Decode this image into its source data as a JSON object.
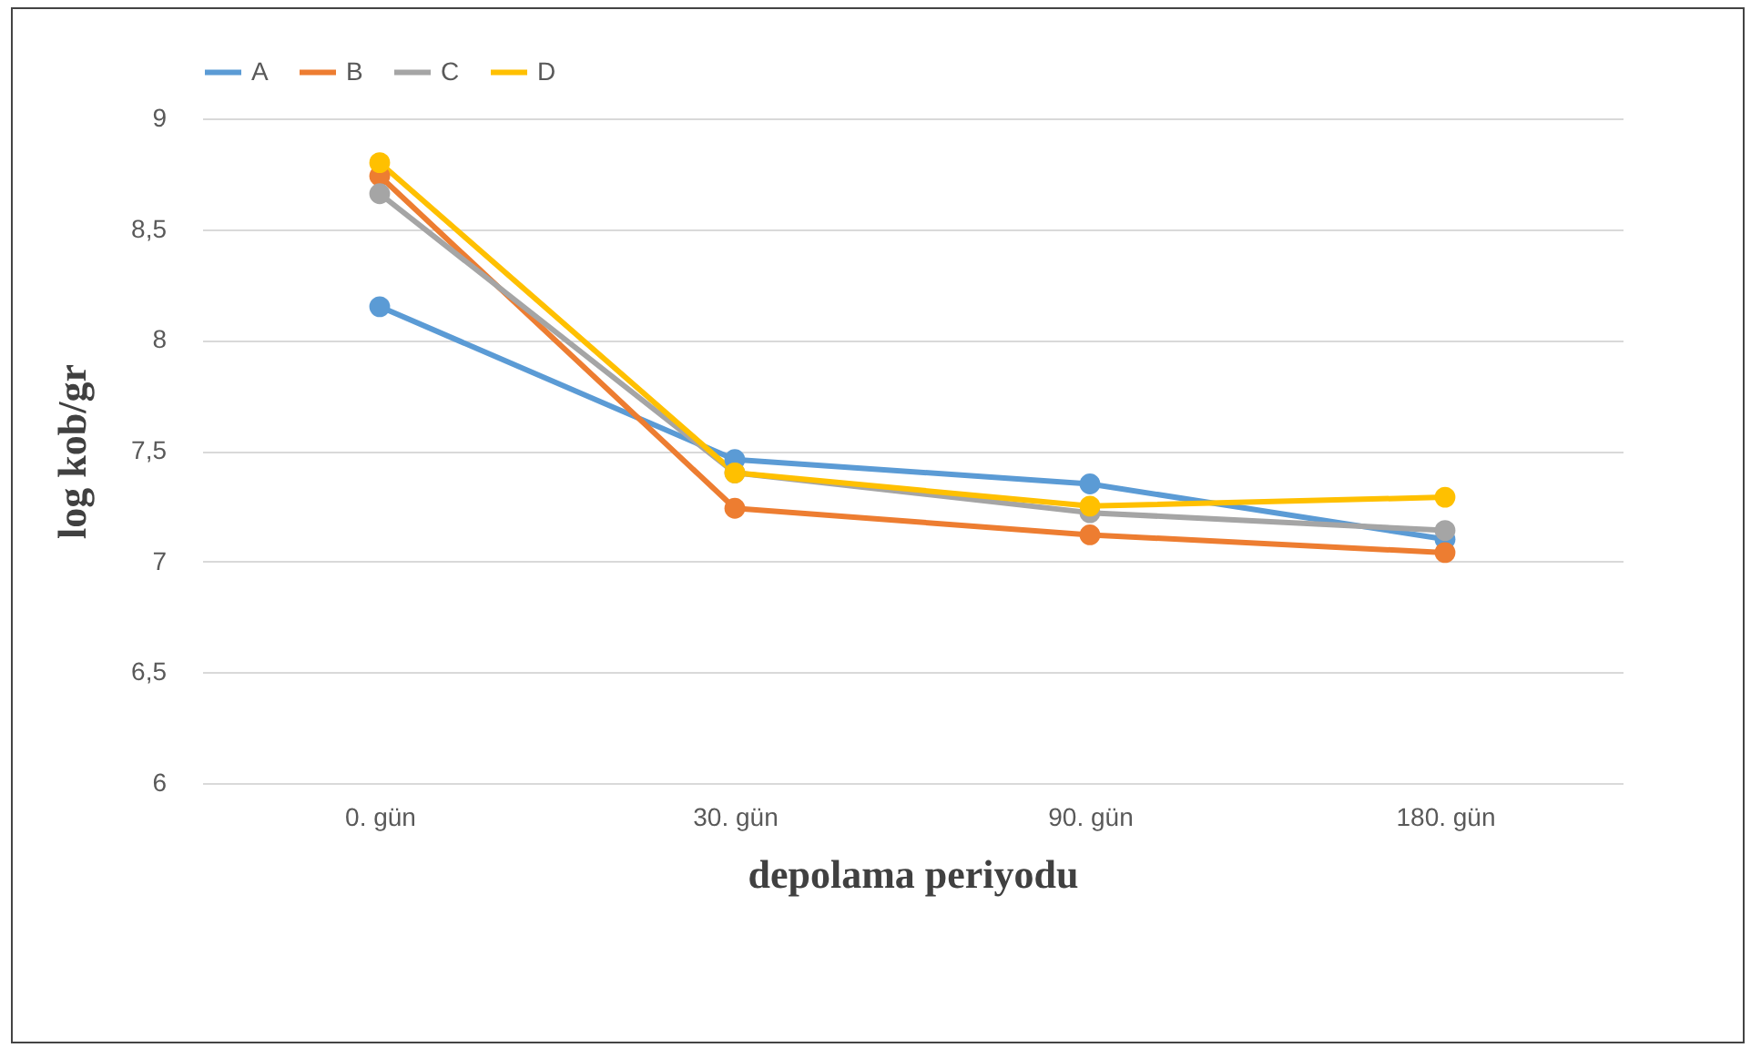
{
  "chart_data": {
    "type": "line",
    "xlabel": "depolama periyodu",
    "ylabel": "log kob/gr",
    "categories": [
      "0. gün",
      "30. gün",
      "90. gün",
      "180. gün"
    ],
    "series": [
      {
        "name": "A",
        "color": "#5b9bd5",
        "values": [
          8.15,
          7.46,
          7.35,
          7.1
        ]
      },
      {
        "name": "B",
        "color": "#ed7d31",
        "values": [
          8.74,
          7.24,
          7.12,
          7.04
        ]
      },
      {
        "name": "C",
        "color": "#a5a5a5",
        "values": [
          8.66,
          7.4,
          7.22,
          7.14
        ]
      },
      {
        "name": "D",
        "color": "#ffc000",
        "values": [
          8.8,
          7.4,
          7.25,
          7.29
        ]
      }
    ],
    "ylim": [
      6,
      9
    ],
    "yticks": [
      {
        "value": 6,
        "label": "6"
      },
      {
        "value": 6.5,
        "label": "6,5"
      },
      {
        "value": 7,
        "label": "7"
      },
      {
        "value": 7.5,
        "label": "7,5"
      },
      {
        "value": 8,
        "label": "8"
      },
      {
        "value": 8.5,
        "label": "8,5"
      },
      {
        "value": 9,
        "label": "9"
      }
    ],
    "grid": "y",
    "legend": "top",
    "marker": "circle",
    "line_style": "solid"
  }
}
